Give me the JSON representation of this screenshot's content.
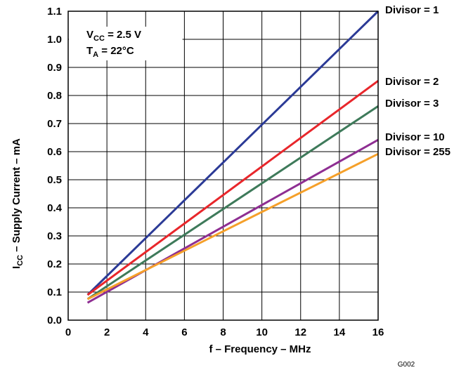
{
  "chart_data": {
    "type": "line",
    "xlabel": "f – Frequency – MHz",
    "ylabel": {
      "main": "I",
      "sub": "CC",
      "rest": " – Supply Current – mA"
    },
    "xlim": [
      0,
      16
    ],
    "ylim": [
      0,
      1.1
    ],
    "xticks": [
      "0",
      "2",
      "4",
      "6",
      "8",
      "10",
      "12",
      "14",
      "16"
    ],
    "yticks": [
      "0.0",
      "0.1",
      "0.2",
      "0.3",
      "0.4",
      "0.5",
      "0.6",
      "0.7",
      "0.8",
      "0.9",
      "1.0",
      "1.1"
    ],
    "grid": true,
    "annotation": {
      "line1": {
        "main": "V",
        "sub": "CC",
        "rest": " = 2.5 V"
      },
      "line2": {
        "main": "T",
        "sub": "A",
        "rest": " = 22°C"
      }
    },
    "series": [
      {
        "name": "Divisor = 1",
        "color": "#2b3a96",
        "x": [
          1,
          16
        ],
        "y": [
          0.09,
          1.1
        ]
      },
      {
        "name": "Divisor = 2",
        "color": "#e8262b",
        "x": [
          1,
          16
        ],
        "y": [
          0.09,
          0.852
        ]
      },
      {
        "name": "Divisor = 3",
        "color": "#3e7a5a",
        "x": [
          1,
          16
        ],
        "y": [
          0.075,
          0.762
        ]
      },
      {
        "name": "Divisor = 10",
        "color": "#8e2e92",
        "x": [
          1,
          16
        ],
        "y": [
          0.062,
          0.642
        ]
      },
      {
        "name": "Divisor = 255",
        "color": "#f5a02a",
        "x": [
          1,
          16
        ],
        "y": [
          0.075,
          0.592
        ]
      }
    ],
    "figure_id": "G002"
  }
}
